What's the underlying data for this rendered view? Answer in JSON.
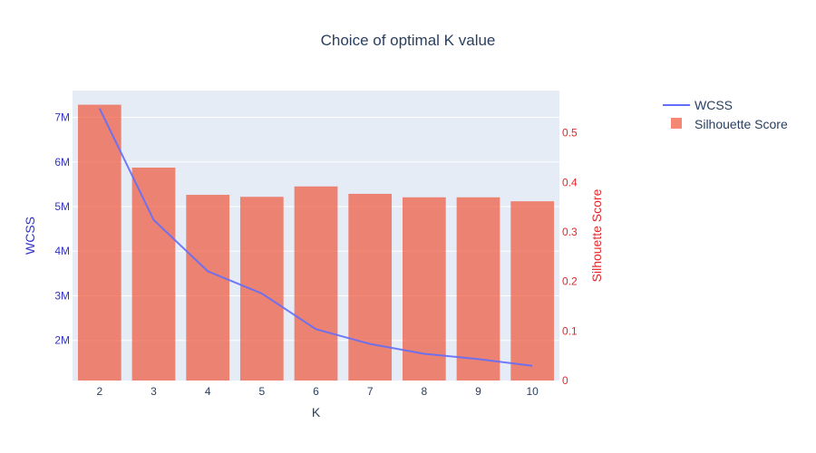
{
  "chart_data": {
    "type": "bar+line",
    "title": "Choice of optimal K value",
    "xlabel": "K",
    "ylabel_left": "WCSS",
    "ylabel_right": "Silhouette Score",
    "categories": [
      "2",
      "3",
      "4",
      "5",
      "6",
      "7",
      "8",
      "9",
      "10"
    ],
    "series": [
      {
        "name": "WCSS",
        "type": "line",
        "axis": "left",
        "color": "#636efa",
        "values": [
          7200000,
          4700000,
          3550000,
          3050000,
          2250000,
          1920000,
          1700000,
          1580000,
          1430000
        ]
      },
      {
        "name": "Silhouette Score",
        "type": "bar",
        "axis": "right",
        "color": "#ef553b",
        "values": [
          0.557,
          0.43,
          0.375,
          0.371,
          0.392,
          0.377,
          0.37,
          0.37,
          0.362
        ]
      }
    ],
    "ylim_left": [
      1100000,
      7600000
    ],
    "ylim_right": [
      0,
      0.5855
    ],
    "yticks_left": [
      {
        "value": 2000000,
        "label": "2M"
      },
      {
        "value": 3000000,
        "label": "3M"
      },
      {
        "value": 4000000,
        "label": "4M"
      },
      {
        "value": 5000000,
        "label": "5M"
      },
      {
        "value": 6000000,
        "label": "6M"
      },
      {
        "value": 7000000,
        "label": "7M"
      }
    ],
    "yticks_right": [
      {
        "value": 0,
        "label": "0"
      },
      {
        "value": 0.1,
        "label": "0.1"
      },
      {
        "value": 0.2,
        "label": "0.2"
      },
      {
        "value": 0.3,
        "label": "0.3"
      },
      {
        "value": 0.4,
        "label": "0.4"
      },
      {
        "value": 0.5,
        "label": "0.5"
      }
    ],
    "left_axis_color": "#3333cc",
    "right_axis_color": "#e8262a",
    "plot_background": "#e5ecf6",
    "grid": true,
    "legend_position": "top-right"
  }
}
